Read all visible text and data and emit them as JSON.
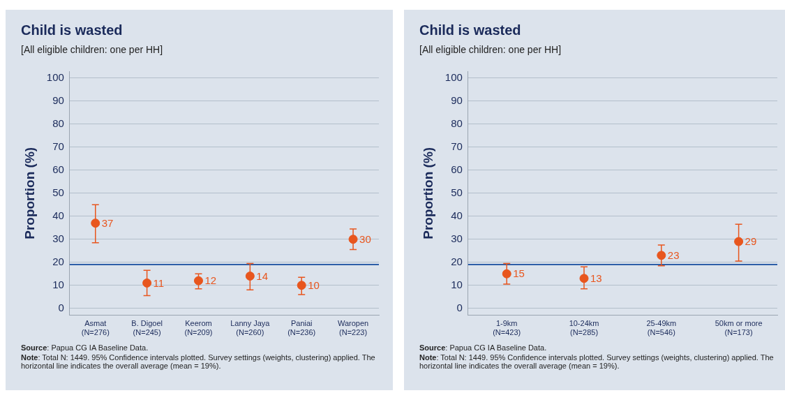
{
  "chart_data": [
    {
      "type": "scatter",
      "title": "Child is wasted",
      "subtitle": "[All eligible children: one per HH]",
      "ylabel": "Proportion (%)",
      "categories": [
        "Asmat\n(N=276)",
        "B. Digoel\n(N=245)",
        "Keerom\n(N=209)",
        "Lanny Jaya\n(N=260)",
        "Paniai\n(N=236)",
        "Waropen\n(N=223)"
      ],
      "series": [
        {
          "color": "#e8561e",
          "values": [
            37,
            11,
            12,
            14,
            10,
            30
          ],
          "errors": [
            [
              28.5,
              45
            ],
            [
              5.5,
              16.5
            ],
            [
              8.5,
              15
            ],
            [
              8,
              19.5
            ],
            [
              6,
              13.5
            ],
            [
              25.5,
              34.5
            ]
          ]
        }
      ],
      "ylim": [
        -3,
        103
      ],
      "yticks": [
        0,
        10,
        20,
        30,
        40,
        50,
        60,
        70,
        80,
        90,
        100
      ],
      "grid": "y",
      "legend": false,
      "marker": "circle",
      "data_labels": true,
      "ref_lines": [
        {
          "axis": "y",
          "value": 19,
          "color": "#2e5fa8"
        }
      ],
      "annotations": [
        "Source: Papua CG IA Baseline Data.",
        "Note: Total N: 1449. 95% Confidence intervals plotted. Survey settings (weights, clustering) applied. The horizontal line indicates the overall average (mean = 19%)."
      ]
    },
    {
      "type": "scatter",
      "title": "Child is wasted",
      "subtitle": "[All eligible children: one per HH]",
      "ylabel": "Proportion (%)",
      "categories": [
        "1-9km\n(N=423)",
        "10-24km\n(N=285)",
        "25-49km\n(N=546)",
        "50km or more\n(N=173)"
      ],
      "series": [
        {
          "color": "#e8561e",
          "values": [
            15,
            13,
            23,
            29
          ],
          "errors": [
            [
              10.5,
              19.5
            ],
            [
              8.5,
              18
            ],
            [
              18.5,
              27.5
            ],
            [
              20.5,
              36.5
            ]
          ]
        }
      ],
      "ylim": [
        -3,
        103
      ],
      "yticks": [
        0,
        10,
        20,
        30,
        40,
        50,
        60,
        70,
        80,
        90,
        100
      ],
      "grid": "y",
      "legend": false,
      "marker": "circle",
      "data_labels": true,
      "ref_lines": [
        {
          "axis": "y",
          "value": 19,
          "color": "#2e5fa8"
        }
      ],
      "annotations": [
        "Source: Papua CG IA Baseline Data.",
        "Note: Total N: 1449. 95% Confidence intervals plotted. Survey settings (weights, clustering) applied. The horizontal line indicates the overall average (mean = 19%)."
      ]
    }
  ]
}
